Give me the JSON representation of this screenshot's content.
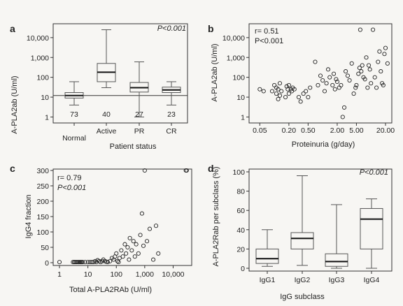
{
  "chart_data": [
    {
      "panel": "a",
      "type": "box",
      "ylabel": "A-PLA2ab (U/ml)",
      "xlabel": "Patient status",
      "yscale": "log",
      "yticks": [
        "1",
        "10",
        "100",
        "1,000",
        "10,000"
      ],
      "ylim": [
        0.5,
        50000
      ],
      "annotation": "P<0.001",
      "reference_line": 12,
      "categories": [
        "Normal",
        "Active",
        "PR",
        "CR"
      ],
      "counts": [
        "73",
        "40",
        "27",
        "23"
      ],
      "boxes": [
        {
          "min": 4,
          "q1": 9,
          "median": 12,
          "q3": 17,
          "max": 60
        },
        {
          "min": 30,
          "q1": 60,
          "median": 180,
          "q3": 500,
          "max": 25000
        },
        {
          "min": 1,
          "q1": 18,
          "median": 30,
          "q3": 55,
          "max": 600
        },
        {
          "min": 4,
          "q1": 17,
          "median": 23,
          "q3": 32,
          "max": 60
        }
      ]
    },
    {
      "panel": "b",
      "type": "scatter",
      "ylabel": "A-PLA2ab (U/ml)",
      "xlabel": "Proteinuria (g/day)",
      "xscale": "log",
      "yscale": "log",
      "xticks": [
        "0.05",
        "0.20",
        "0.50",
        "2.00",
        "5.00",
        "20.00"
      ],
      "yticks": [
        "1",
        "10",
        "100",
        "1,000",
        "10,000"
      ],
      "annotation": [
        "r= 0.51",
        "P<0.001"
      ],
      "points": [
        [
          0.05,
          25
        ],
        [
          0.06,
          20
        ],
        [
          0.09,
          20
        ],
        [
          0.1,
          40
        ],
        [
          0.11,
          15
        ],
        [
          0.11,
          30
        ],
        [
          0.12,
          8
        ],
        [
          0.12,
          25
        ],
        [
          0.13,
          50
        ],
        [
          0.13,
          12
        ],
        [
          0.14,
          20
        ],
        [
          0.17,
          10
        ],
        [
          0.18,
          35
        ],
        [
          0.19,
          25
        ],
        [
          0.2,
          15
        ],
        [
          0.2,
          40
        ],
        [
          0.22,
          25
        ],
        [
          0.23,
          20
        ],
        [
          0.24,
          30
        ],
        [
          0.26,
          25
        ],
        [
          0.32,
          10
        ],
        [
          0.35,
          6
        ],
        [
          0.4,
          15
        ],
        [
          0.45,
          20
        ],
        [
          0.5,
          10
        ],
        [
          0.55,
          30
        ],
        [
          0.7,
          600
        ],
        [
          0.8,
          40
        ],
        [
          0.9,
          120
        ],
        [
          1.0,
          70
        ],
        [
          1.1,
          20
        ],
        [
          1.2,
          50
        ],
        [
          1.3,
          250
        ],
        [
          1.4,
          100
        ],
        [
          1.6,
          40
        ],
        [
          1.7,
          150
        ],
        [
          1.8,
          25
        ],
        [
          1.9,
          80
        ],
        [
          2.0,
          60
        ],
        [
          2.2,
          30
        ],
        [
          2.4,
          40
        ],
        [
          2.6,
          1
        ],
        [
          2.8,
          3
        ],
        [
          3.0,
          200
        ],
        [
          3.3,
          120
        ],
        [
          3.6,
          70
        ],
        [
          4.0,
          500
        ],
        [
          4.4,
          15
        ],
        [
          4.8,
          30
        ],
        [
          5.0,
          40
        ],
        [
          5.5,
          150
        ],
        [
          5.8,
          300
        ],
        [
          6.0,
          25000
        ],
        [
          6.3,
          200
        ],
        [
          6.6,
          400
        ],
        [
          7.0,
          100
        ],
        [
          7.5,
          80
        ],
        [
          8.0,
          1000
        ],
        [
          8.5,
          30
        ],
        [
          9.0,
          400
        ],
        [
          9.5,
          250
        ],
        [
          10.0,
          50
        ],
        [
          11,
          25000
        ],
        [
          12,
          100
        ],
        [
          13,
          30
        ],
        [
          14,
          600
        ],
        [
          15,
          2000
        ],
        [
          16,
          200
        ],
        [
          17,
          50
        ],
        [
          18,
          40
        ],
        [
          19,
          1500
        ],
        [
          20,
          3000
        ],
        [
          22,
          500
        ]
      ]
    },
    {
      "panel": "c",
      "type": "scatter",
      "ylabel": "IgG4 fraction",
      "xlabel": "Total A-PLA2RAb (U/ml)",
      "xscale": "log",
      "xticks": [
        "1",
        "10",
        "100",
        "1,000",
        "10,000"
      ],
      "yticks": [
        "0",
        "50",
        "100",
        "150",
        "200",
        "250",
        "300"
      ],
      "ylim": [
        0,
        300
      ],
      "annotation": [
        "r= 0.79",
        "P<0.001"
      ],
      "points": [
        [
          1,
          2
        ],
        [
          3,
          2
        ],
        [
          3.3,
          2
        ],
        [
          3.6,
          2
        ],
        [
          4,
          2
        ],
        [
          4.4,
          2
        ],
        [
          4.8,
          2
        ],
        [
          5.2,
          2
        ],
        [
          5.6,
          2
        ],
        [
          6,
          2
        ],
        [
          6.5,
          2
        ],
        [
          8,
          2
        ],
        [
          10,
          2
        ],
        [
          12,
          2
        ],
        [
          14,
          2
        ],
        [
          16,
          2
        ],
        [
          18,
          5
        ],
        [
          20,
          2
        ],
        [
          22,
          8
        ],
        [
          25,
          5
        ],
        [
          28,
          2
        ],
        [
          32,
          5
        ],
        [
          35,
          10
        ],
        [
          40,
          5
        ],
        [
          45,
          3
        ],
        [
          50,
          2
        ],
        [
          60,
          5
        ],
        [
          70,
          15
        ],
        [
          80,
          10
        ],
        [
          90,
          20
        ],
        [
          100,
          30
        ],
        [
          110,
          5
        ],
        [
          120,
          2
        ],
        [
          130,
          15
        ],
        [
          150,
          40
        ],
        [
          170,
          20
        ],
        [
          200,
          60
        ],
        [
          220,
          30
        ],
        [
          250,
          50
        ],
        [
          280,
          10
        ],
        [
          300,
          80
        ],
        [
          350,
          40
        ],
        [
          400,
          70
        ],
        [
          450,
          20
        ],
        [
          500,
          60
        ],
        [
          600,
          30
        ],
        [
          700,
          90
        ],
        [
          800,
          160
        ],
        [
          900,
          55
        ],
        [
          1000,
          300
        ],
        [
          1200,
          70
        ],
        [
          1500,
          110
        ],
        [
          2000,
          10
        ],
        [
          2500,
          120
        ],
        [
          3000,
          30
        ],
        [
          28000,
          300
        ],
        [
          30000,
          300
        ]
      ]
    },
    {
      "panel": "d",
      "type": "box",
      "ylabel": "A-PLA2Rab per subclass (%)",
      "xlabel": "IgG subclass",
      "yticks": [
        "0",
        "20",
        "40",
        "60",
        "80",
        "100"
      ],
      "ylim": [
        0,
        100
      ],
      "annotation": "P<0.001",
      "categories": [
        "IgG1",
        "IgG2",
        "IgG3",
        "IgG4"
      ],
      "boxes": [
        {
          "min": 2,
          "q1": 5,
          "median": 10,
          "q3": 20,
          "max": 40
        },
        {
          "min": 3,
          "q1": 20,
          "median": 31,
          "q3": 37,
          "max": 96
        },
        {
          "min": 0,
          "q1": 2,
          "median": 7,
          "q3": 15,
          "max": 66
        },
        {
          "min": 0,
          "q1": 20,
          "median": 51,
          "q3": 62,
          "max": 72
        }
      ]
    }
  ],
  "panel_letters": [
    "a",
    "b",
    "c",
    "d"
  ]
}
